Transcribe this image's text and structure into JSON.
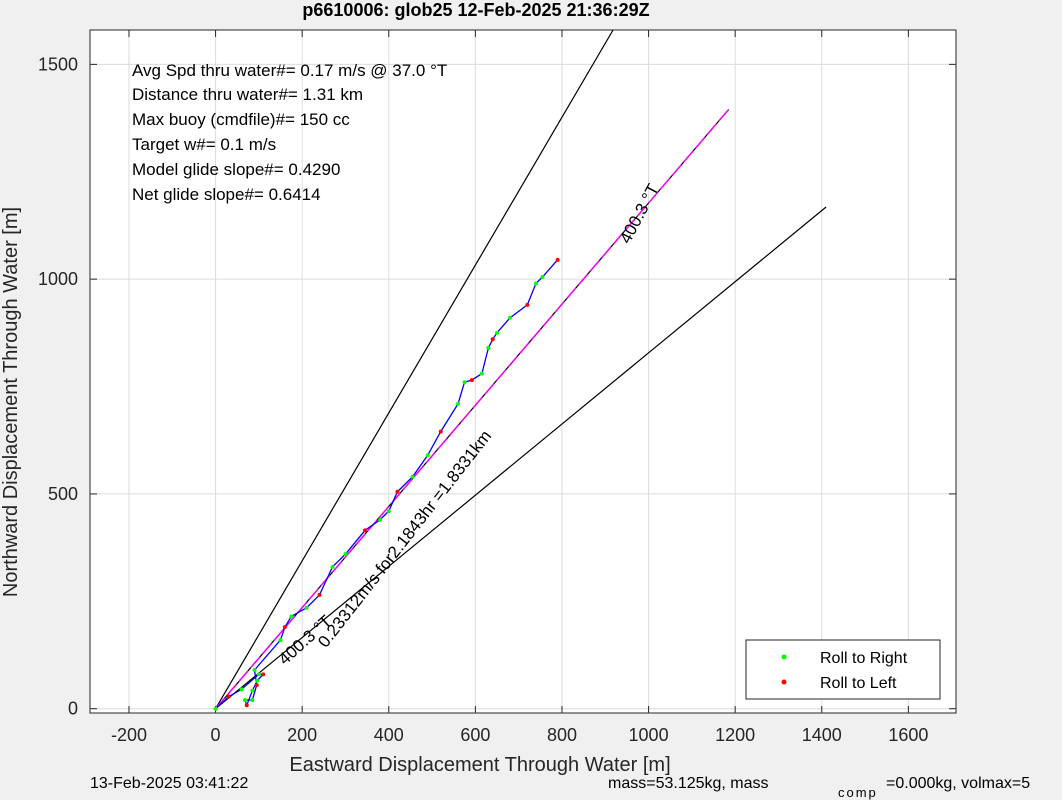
{
  "chart_data": {
    "type": "line",
    "title": "p6610006: glob25 12-Feb-2025 21:36:29Z",
    "xlabel": "Eastward Displacement Through Water [m]",
    "ylabel": "Northward Displacement Through Water [m]",
    "xlim": [
      -290,
      1710
    ],
    "ylim": [
      -10,
      1580
    ],
    "xticks": [
      -200,
      0,
      200,
      400,
      600,
      800,
      1000,
      1200,
      1400,
      1600
    ],
    "yticks": [
      0,
      500,
      1000,
      1500
    ],
    "grid": true,
    "stats": [
      "Avg Spd thru water#=  0.17 m/s @  37.0        °T",
      "Distance thru water#=  1.31 km",
      "Max buoy (cmdfile)#= 150 cc",
      "Target w#= 0.1 m/s",
      "Model glide slope#= 0.4290",
      "Net glide slope#= 0.6414"
    ],
    "reference_lines": [
      {
        "name": "upper-bound",
        "color": "#000000",
        "x": [
          0,
          918
        ],
        "y": [
          0,
          1580
        ]
      },
      {
        "name": "lower-bound",
        "color": "#000000",
        "x": [
          0,
          1410
        ],
        "y": [
          0,
          1168
        ]
      },
      {
        "name": "track-line",
        "color": "#000000",
        "x": [
          0,
          1185
        ],
        "y": [
          0,
          1395
        ]
      }
    ],
    "track": {
      "color": "#ff00ff",
      "x": [
        0,
        1185
      ],
      "y": [
        0,
        1395
      ]
    },
    "trajectory": {
      "color": "#0000ff",
      "x": [
        0,
        30,
        60,
        100,
        110,
        96,
        85,
        72,
        68,
        85,
        95,
        90,
        150,
        160,
        175,
        210,
        240,
        270,
        300,
        345,
        380,
        400,
        420,
        455,
        490,
        520,
        560,
        575,
        592,
        615,
        630,
        640,
        650,
        680,
        720,
        740,
        755,
        790
      ],
      "y": [
        0,
        28,
        45,
        80,
        80,
        65,
        42,
        8,
        20,
        20,
        55,
        90,
        160,
        190,
        215,
        235,
        265,
        330,
        360,
        415,
        440,
        460,
        505,
        540,
        590,
        645,
        710,
        760,
        765,
        780,
        840,
        860,
        875,
        910,
        940,
        990,
        1005,
        1045
      ]
    },
    "annotations": [
      {
        "text": "400.3 °T",
        "x": 955,
        "y": 1080,
        "angle": -62
      },
      {
        "text": "0.23312m/s for2.1843hr =1.8331km",
        "x": 255,
        "y": 140,
        "angle": -52
      },
      {
        "text": "400.3 °T",
        "x": 160,
        "y": 100,
        "angle": -42
      }
    ],
    "legend": {
      "placement": "bottom-right",
      "entries": [
        {
          "name": "Roll to Right",
          "color": "#00ff00"
        },
        {
          "name": "Roll to Left",
          "color": "#ff0000"
        }
      ]
    }
  },
  "footer": {
    "timestamp": "13-Feb-2025 03:41:22",
    "mass_text": "mass=53.125kg, mass",
    "comp_text": "comp",
    "vol_text": "=0.000kg, volmax=5"
  }
}
